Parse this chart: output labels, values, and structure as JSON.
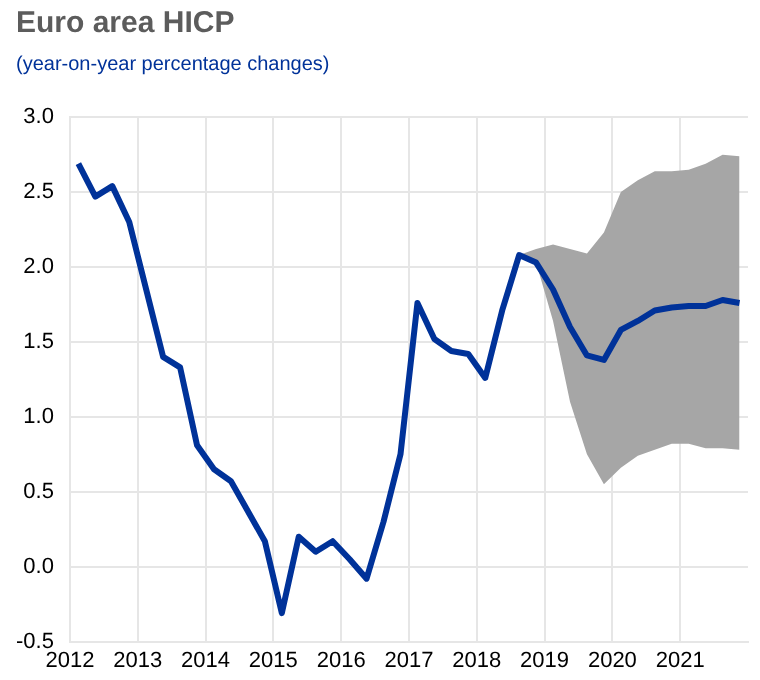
{
  "chart_data": {
    "type": "line",
    "title": "Euro area HICP",
    "subtitle": "(year-on-year percentage changes)",
    "x": [
      2012.125,
      2012.375,
      2012.625,
      2012.875,
      2013.125,
      2013.375,
      2013.625,
      2013.875,
      2014.125,
      2014.375,
      2014.625,
      2014.875,
      2015.125,
      2015.375,
      2015.625,
      2015.875,
      2016.125,
      2016.375,
      2016.625,
      2016.875,
      2017.125,
      2017.375,
      2017.625,
      2017.875,
      2018.125,
      2018.375,
      2018.625,
      2018.875,
      2019.125,
      2019.375,
      2019.625,
      2019.875,
      2020.125,
      2020.375,
      2020.625,
      2020.875,
      2021.125,
      2021.375,
      2021.625,
      2021.875
    ],
    "series": [
      {
        "color": "#003299",
        "values": [
          2.69,
          2.47,
          2.54,
          2.3,
          1.85,
          1.4,
          1.33,
          0.81,
          0.65,
          0.57,
          0.37,
          0.17,
          -0.31,
          0.2,
          0.1,
          0.17,
          0.05,
          -0.08,
          0.3,
          0.75,
          1.76,
          1.52,
          1.44,
          1.42,
          1.26,
          1.71,
          2.08,
          2.03,
          1.85,
          1.6,
          1.41,
          1.38,
          1.58,
          1.64,
          1.71,
          1.73,
          1.74,
          1.74,
          1.78,
          1.76
        ],
        "lower": [
          null,
          null,
          null,
          null,
          null,
          null,
          null,
          null,
          null,
          null,
          null,
          null,
          null,
          null,
          null,
          null,
          null,
          null,
          null,
          null,
          null,
          null,
          null,
          null,
          null,
          null,
          2.08,
          2.03,
          1.64,
          1.1,
          0.75,
          0.55,
          0.66,
          0.74,
          0.78,
          0.82,
          0.82,
          0.79,
          0.79,
          0.78
        ],
        "upper": [
          null,
          null,
          null,
          null,
          null,
          null,
          null,
          null,
          null,
          null,
          null,
          null,
          null,
          null,
          null,
          null,
          null,
          null,
          null,
          null,
          null,
          null,
          null,
          null,
          null,
          null,
          2.08,
          2.12,
          2.15,
          2.12,
          2.09,
          2.23,
          2.5,
          2.58,
          2.64,
          2.64,
          2.65,
          2.69,
          2.75,
          2.74
        ]
      }
    ],
    "xlim": [
      2012,
      2022
    ],
    "xticks": [
      2012,
      2013,
      2014,
      2015,
      2016,
      2017,
      2018,
      2019,
      2020,
      2021
    ],
    "ylim": [
      -0.5,
      3.0
    ],
    "yticks": [
      {
        "value": -0.5,
        "label": "-0.5"
      },
      {
        "value": 0,
        "label": "0.0"
      },
      {
        "value": 0.5,
        "label": "0.5"
      },
      {
        "value": 1,
        "label": "1.0"
      },
      {
        "value": 1.5,
        "label": "1.5"
      },
      {
        "value": 2,
        "label": "2.0"
      },
      {
        "value": 2.5,
        "label": "2.5"
      },
      {
        "value": 3,
        "label": "3.0"
      }
    ],
    "grid": true,
    "legend": false,
    "marker": "none",
    "line_style": "solid"
  }
}
